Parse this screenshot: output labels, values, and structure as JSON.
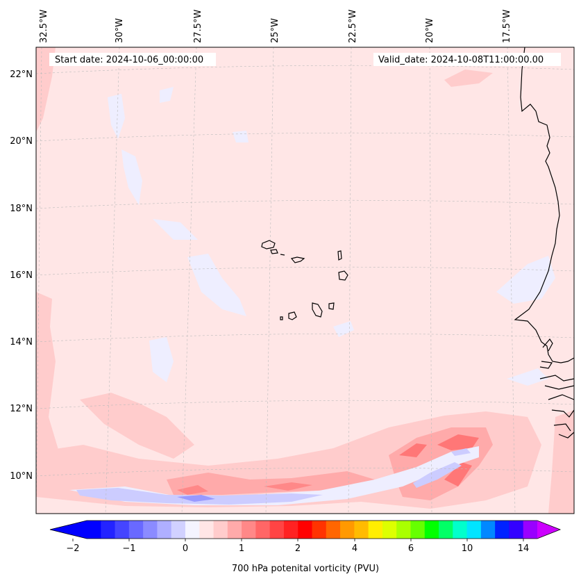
{
  "header": {
    "start_date": "Start date: 2024-10-06_00:00:00",
    "valid_date": "Valid_date: 2024-10-08T11:00:00.00"
  },
  "lon_labels": [
    "32.5°W",
    "30°W",
    "27.5°W",
    "25°W",
    "22.5°W",
    "20°W",
    "17.5°W"
  ],
  "lat_labels": [
    "22°N",
    "20°N",
    "18°N",
    "16°N",
    "14°N",
    "12°N",
    "10°N"
  ],
  "colorbar": {
    "label": "700 hPa potenital vorticity (PVU)",
    "ticks": [
      "−2",
      "−1",
      "0",
      "1",
      "2",
      "4",
      "6",
      "10",
      "14"
    ],
    "extend": "both"
  },
  "colors": {
    "background_field": "#ffe6e6",
    "negative_weak": "#eeeeff",
    "positive_weak": "#ffcccc",
    "positive_mid": "#ffaaaa",
    "positive_strong": "#ff7777",
    "negative_mid": "#ccccff",
    "negative_strong": "#9999ff",
    "coastline": "#000000",
    "gridline": "#bbbbbb"
  },
  "colorbar_colors": [
    "#0000ff",
    "#2323ff",
    "#4545ff",
    "#6969ff",
    "#8b8bff",
    "#afafff",
    "#d1d1ff",
    "#f4f4ff",
    "#ffe6e6",
    "#ffcccc",
    "#ffaaaa",
    "#ff8888",
    "#ff6666",
    "#ff4444",
    "#ff2222",
    "#ff0000",
    "#ff3300",
    "#ff6600",
    "#ff9900",
    "#ffbb00",
    "#ffee00",
    "#ddff00",
    "#aaff00",
    "#66ff00",
    "#00ff00",
    "#00ff66",
    "#00ffcc",
    "#00e5ff",
    "#0088ff",
    "#0022ff",
    "#3300ff",
    "#9900ff"
  ],
  "colorbar_extend_colors": {
    "min": "#0000ff",
    "max": "#cc00ff"
  }
}
